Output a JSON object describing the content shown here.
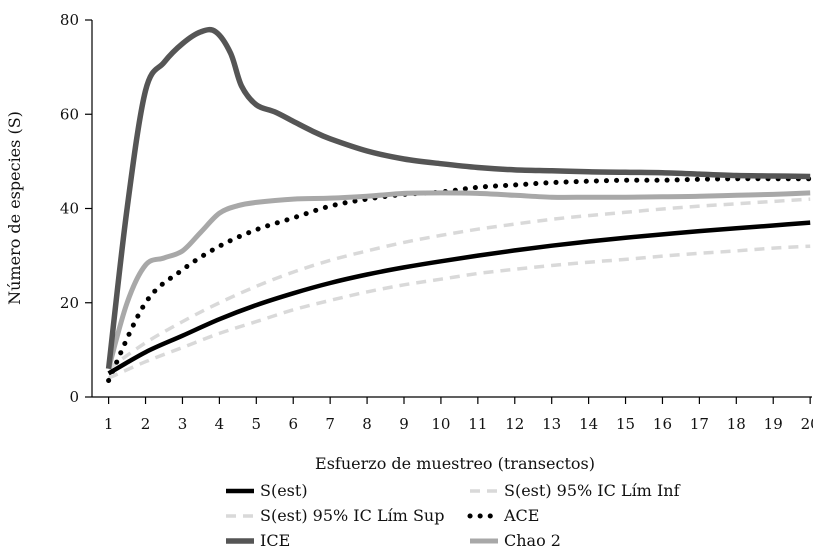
{
  "chart_data": {
    "type": "line",
    "xlabel": "Esfuerzo de muestreo (transectos)",
    "ylabel": "Número de especies (S)",
    "xlim": [
      0.55,
      20.05
    ],
    "ylim": [
      0,
      80
    ],
    "x_ticks": [
      1,
      2,
      3,
      4,
      5,
      6,
      7,
      8,
      9,
      10,
      11,
      12,
      13,
      14,
      15,
      16,
      17,
      18,
      19,
      20
    ],
    "y_ticks": [
      0,
      20,
      40,
      60,
      80
    ],
    "grid": false,
    "legend_position": "bottom",
    "series": [
      {
        "name": "S(est)",
        "color": "#000000",
        "dash": "solid",
        "width": 4.5,
        "x": [
          1,
          2,
          3,
          4,
          5,
          6,
          7,
          8,
          9,
          10,
          11,
          12,
          13,
          14,
          15,
          16,
          17,
          18,
          19,
          20
        ],
        "y": [
          5,
          9.5,
          13,
          16.5,
          19.5,
          22,
          24.2,
          26,
          27.5,
          28.8,
          30,
          31.1,
          32.1,
          33,
          33.8,
          34.5,
          35.2,
          35.8,
          36.4,
          37
        ]
      },
      {
        "name": "S(est) 95% IC Lím Inf",
        "color": "#d9d9d9",
        "dash": "dashed",
        "width": 3.5,
        "x": [
          1,
          2,
          3,
          4,
          5,
          6,
          7,
          8,
          9,
          10,
          11,
          12,
          13,
          14,
          15,
          16,
          17,
          18,
          19,
          20
        ],
        "y": [
          4,
          7.5,
          10.5,
          13.5,
          16,
          18.5,
          20.5,
          22.3,
          23.8,
          25,
          26.2,
          27.1,
          27.9,
          28.6,
          29.2,
          29.9,
          30.5,
          31,
          31.6,
          32
        ]
      },
      {
        "name": "S(est) 95% IC Lím Sup",
        "color": "#d9d9d9",
        "dash": "dashed",
        "width": 3.5,
        "x": [
          1,
          2,
          3,
          4,
          5,
          6,
          7,
          8,
          9,
          10,
          11,
          12,
          13,
          14,
          15,
          16,
          17,
          18,
          19,
          20
        ],
        "y": [
          6,
          11.5,
          16,
          20,
          23.5,
          26.5,
          29,
          31,
          32.8,
          34.3,
          35.6,
          36.7,
          37.7,
          38.5,
          39.2,
          39.9,
          40.5,
          41,
          41.5,
          42
        ]
      },
      {
        "name": "ACE",
        "color": "#000000",
        "dash": "dotted",
        "width": 5,
        "x": [
          1,
          2,
          3,
          4,
          5,
          6,
          7,
          8,
          9,
          10,
          11,
          12,
          13,
          14,
          15,
          16,
          17,
          18,
          19,
          20
        ],
        "y": [
          3.5,
          20,
          27,
          32,
          35.5,
          38,
          40.5,
          42,
          43,
          43.5,
          44.5,
          45,
          45.5,
          45.8,
          46,
          46,
          46.2,
          46.3,
          46.3,
          46.3
        ]
      },
      {
        "name": "ICE",
        "color": "#555555",
        "dash": "solid",
        "width": 5.5,
        "x": [
          1,
          1.5,
          2,
          2.5,
          3,
          3.5,
          3.9,
          4.3,
          4.6,
          5,
          5.5,
          6,
          6.5,
          7,
          8,
          9,
          10,
          11,
          12,
          13,
          14,
          15,
          16,
          17,
          18,
          19,
          20
        ],
        "y": [
          6,
          40,
          65,
          71,
          75,
          77.5,
          77.5,
          73,
          66,
          62,
          60.5,
          58.5,
          56.5,
          54.8,
          52.2,
          50.5,
          49.5,
          48.7,
          48.2,
          48,
          47.8,
          47.7,
          47.6,
          47.3,
          47,
          46.9,
          46.8
        ]
      },
      {
        "name": "Chao 2",
        "color": "#a8a8a8",
        "dash": "solid",
        "width": 5,
        "x": [
          1,
          1.5,
          2,
          2.5,
          3,
          3.5,
          4,
          4.5,
          5,
          6,
          7,
          8,
          9,
          10,
          11,
          12,
          13,
          14,
          15,
          16,
          17,
          18,
          19,
          20
        ],
        "y": [
          6,
          20,
          28,
          29.5,
          31,
          35,
          39,
          40.6,
          41.3,
          42,
          42.2,
          42.6,
          43.2,
          43.3,
          43.2,
          42.8,
          42.4,
          42.4,
          42.4,
          42.5,
          42.6,
          42.8,
          43,
          43.3
        ]
      }
    ],
    "legend": [
      {
        "label": "S(est)",
        "series": 0
      },
      {
        "label": "S(est) 95% IC Lím Inf",
        "series": 1
      },
      {
        "label": "S(est) 95% IC Lím Sup",
        "series": 2
      },
      {
        "label": "ACE",
        "series": 3
      },
      {
        "label": "ICE",
        "series": 4
      },
      {
        "label": "Chao 2",
        "series": 5
      }
    ]
  }
}
